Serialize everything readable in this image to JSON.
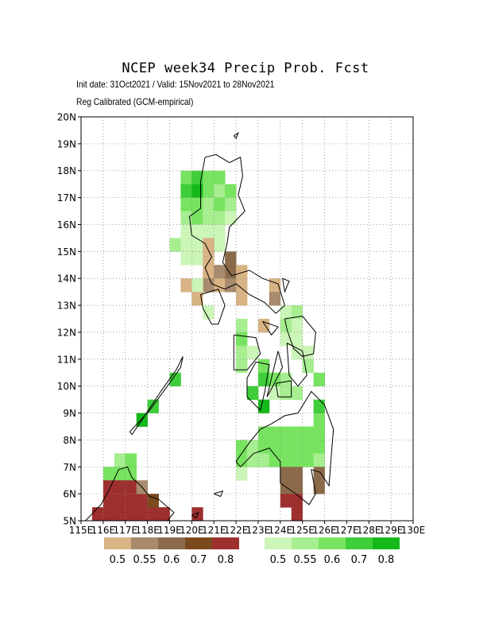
{
  "header": {
    "title": "NCEP week34 Precip Prob. Fcst",
    "line1": "Init date: 31Oct2021 / Valid: 15Nov2021 to 28Nov2021",
    "line2": "Reg Calibrated (GCM-empirical)"
  },
  "map": {
    "lon_range": [
      115,
      130
    ],
    "lat_range": [
      5,
      20
    ],
    "x_ticks": [
      "115E",
      "116E",
      "117E",
      "118E",
      "119E",
      "120E",
      "121E",
      "122E",
      "123E",
      "124E",
      "125E",
      "126E",
      "127E",
      "128E",
      "129E",
      "130E"
    ],
    "y_ticks": [
      "5N",
      "6N",
      "7N",
      "8N",
      "9N",
      "10N",
      "11N",
      "12N",
      "13N",
      "14N",
      "15N",
      "16N",
      "17N",
      "18N",
      "19N",
      "20N"
    ],
    "grid": true
  },
  "legend": {
    "dry": {
      "colors": [
        "#d8b384",
        "#a88a6c",
        "#8a6a4a",
        "#7a4a1e",
        "#9e2f2f"
      ],
      "labels": [
        "0.5",
        "0.55",
        "0.6",
        "0.7",
        "0.8"
      ]
    },
    "wet": {
      "colors": [
        "#ccf5b8",
        "#a6ee90",
        "#78e360",
        "#3ece3a",
        "#14b81a"
      ],
      "labels": [
        "0.5",
        "0.55",
        "0.6",
        "0.7",
        "0.8"
      ]
    }
  }
}
